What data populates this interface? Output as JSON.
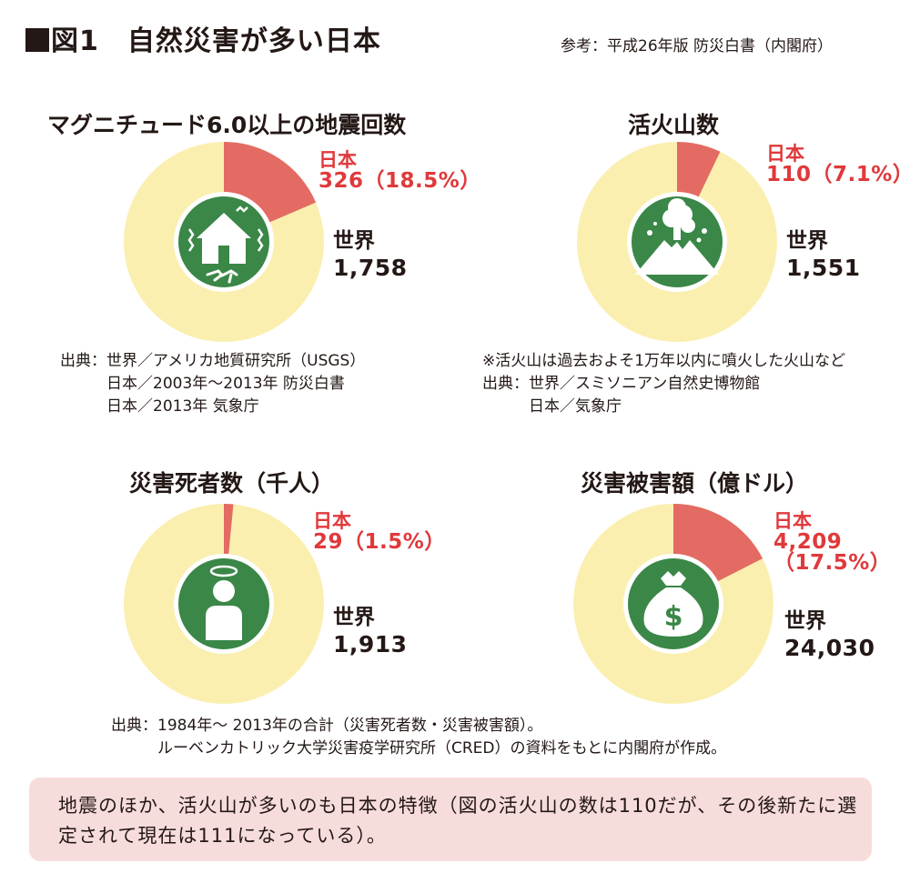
{
  "figure": {
    "title": "図1　自然災害が多い日本",
    "reference": "参考：平成26年版 防災白書（内閣府）"
  },
  "colors": {
    "japan": "#e36b63",
    "world": "#fbefb0",
    "icon": "#3a8747",
    "japan_text": "#e0393b"
  },
  "chart_data": [
    {
      "type": "pie",
      "title": "マグニチュード6.0以上の地震回数",
      "slices": [
        {
          "name": "日本",
          "value": 326,
          "percent": "18.5%",
          "color": "#e36b63"
        },
        {
          "name": "世界",
          "value": 1758,
          "color": "#fbefb0"
        }
      ],
      "icon": "house-earthquake-icon"
    },
    {
      "type": "pie",
      "title": "活火山数",
      "slices": [
        {
          "name": "日本",
          "value": 110,
          "percent": "7.1%",
          "color": "#e36b63"
        },
        {
          "name": "世界",
          "value": 1551,
          "color": "#fbefb0"
        }
      ],
      "icon": "volcano-icon"
    },
    {
      "type": "pie",
      "title": "災害死者数（千人）",
      "slices": [
        {
          "name": "日本",
          "value": 29,
          "percent": "1.5%",
          "color": "#e36b63"
        },
        {
          "name": "世界",
          "value": 1913,
          "color": "#fbefb0"
        }
      ],
      "icon": "person-halo-icon"
    },
    {
      "type": "pie",
      "title": "災害被害額（億ドル）",
      "slices": [
        {
          "name": "日本",
          "value": 4209,
          "percent": "17.5%",
          "color": "#e36b63"
        },
        {
          "name": "世界",
          "value": 24030,
          "color": "#fbefb0"
        }
      ],
      "icon": "money-bag-icon"
    }
  ],
  "labels": {
    "eq": {
      "jp_name": "日本",
      "jp_value": "326（18.5%）",
      "w_name": "世界",
      "w_value": "1,758"
    },
    "vol": {
      "jp_name": "日本",
      "jp_value": "110（7.1%）",
      "w_name": "世界",
      "w_value": "1,551"
    },
    "dead": {
      "jp_name": "日本",
      "jp_value": "29（1.5%）",
      "w_name": "世界",
      "w_value": "1,913"
    },
    "dmg": {
      "jp_name": "日本",
      "jp_value1": "4,209",
      "jp_value2": "（17.5%）",
      "w_name": "世界",
      "w_value": "24,030"
    },
    "dollar_sign": "$"
  },
  "sources": {
    "eq": "出典：世界／アメリカ地質研究所（USGS）\n　　　日本／2003年〜2013年 防災白書\n　　　日本／2013年 気象庁",
    "vol": "※活火山は過去およそ1万年以内に噴火した火山など\n出典：世界／スミソニアン自然史博物館\n　　　日本／気象庁",
    "bottom": "出典：1984年〜 2013年の合計（災害死者数・災害被害額）。\n　　　ルーベンカトリック大学災害疫学研究所（CRED）の資料をもとに内閣府が作成。"
  },
  "note": "地震のほか、活火山が多いのも日本の特徴（図の活火山の数は110だが、その後新たに選定されて現在は111になっている）。"
}
